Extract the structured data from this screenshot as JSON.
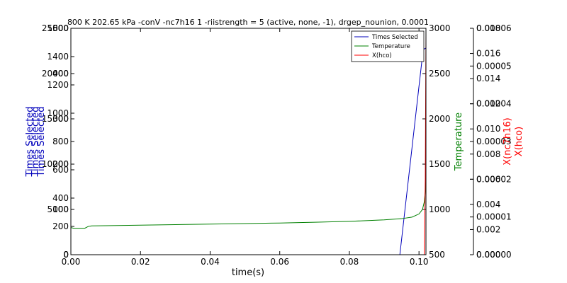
{
  "chart_data": {
    "type": "line",
    "title": "800 K 202.65 kPa -conV -nc7h16 1 -riistrength = 5 (active, none, -1), drgep_nounion, 0.0001",
    "xlabel": "time(s)",
    "xlim": [
      0.0,
      0.102
    ],
    "x_ticks": [
      "0.00",
      "0.02",
      "0.04",
      "0.06",
      "0.08",
      "0.10"
    ],
    "x_tick_values": [
      0.0,
      0.02,
      0.04,
      0.06,
      0.08,
      0.1
    ],
    "legend_position": "top-right",
    "legend": [
      "Times Selected",
      "Temperature",
      "X(hco)"
    ],
    "colors": {
      "times_selected": "#0000bb",
      "temperature": "#008000",
      "x_species": "#ff0000",
      "axis": "#000000"
    },
    "left_axes": [
      {
        "label": "Times Selected",
        "ylim": [
          0,
          25000
        ],
        "ticks": [
          "0",
          "5000",
          "10000",
          "15000",
          "20000",
          "25000"
        ],
        "tick_values": [
          0,
          5000,
          10000,
          15000,
          20000,
          25000
        ]
      },
      {
        "label": "Times Selected",
        "ylim": [
          0,
          1600
        ],
        "ticks": [
          "0",
          "200",
          "400",
          "600",
          "800",
          "1000",
          "1200",
          "1400",
          "1600"
        ],
        "tick_values": [
          0,
          200,
          400,
          600,
          800,
          1000,
          1200,
          1400,
          1600
        ]
      },
      {
        "label": "Times Selected",
        "ylim": [
          0,
          500
        ],
        "ticks": [
          "0",
          "100",
          "200",
          "300",
          "400",
          "500"
        ],
        "tick_values": [
          0,
          100,
          200,
          300,
          400,
          500
        ]
      }
    ],
    "temperature_axis": {
      "label": "Temperature",
      "ylim": [
        500,
        3000
      ],
      "ticks": [
        "500",
        "1000",
        "1500",
        "2000",
        "2500",
        "3000"
      ],
      "tick_values": [
        500,
        1000,
        1500,
        2000,
        2500,
        3000
      ]
    },
    "species_axes": [
      {
        "label": "X(nc7h16)",
        "ylim": [
          0,
          0.018
        ],
        "ticks": [
          "0.000",
          "0.002",
          "0.004",
          "0.006",
          "0.008",
          "0.010",
          "0.012",
          "0.014",
          "0.016",
          "0.018"
        ],
        "tick_values": [
          0,
          0.002,
          0.004,
          0.006,
          0.008,
          0.01,
          0.012,
          0.014,
          0.016,
          0.018
        ]
      },
      {
        "label": "X(hco)",
        "ylim": [
          0,
          6e-05
        ],
        "ticks": [
          "0.00000",
          "0.00001",
          "0.00002",
          "0.00003",
          "0.00004",
          "0.00005",
          "0.00006"
        ],
        "tick_values": [
          0,
          1e-05,
          2e-05,
          3e-05,
          4e-05,
          5e-05,
          6e-05
        ]
      }
    ],
    "series": [
      {
        "name": "Times Selected",
        "x": [
          0.0,
          0.0945,
          0.1012,
          0.102
        ],
        "y": [
          0,
          0,
          1450,
          1460
        ]
      },
      {
        "name": "Temperature",
        "x": [
          0.0,
          0.0008,
          0.004,
          0.005,
          0.006,
          0.01,
          0.02,
          0.03,
          0.04,
          0.05,
          0.06,
          0.07,
          0.08,
          0.09,
          0.095,
          0.098,
          0.1,
          0.101,
          0.1015,
          0.1018,
          0.102
        ],
        "y": [
          800,
          792,
          792,
          812,
          818,
          820,
          826,
          832,
          838,
          844,
          850,
          858,
          868,
          885,
          898,
          915,
          950,
          1000,
          1080,
          1200,
          1400
        ]
      },
      {
        "name": "X(hco)",
        "x": [
          0.0,
          0.1015,
          0.1018,
          0.102
        ],
        "y": [
          0,
          0,
          2e-05,
          5.8e-05
        ]
      }
    ]
  }
}
